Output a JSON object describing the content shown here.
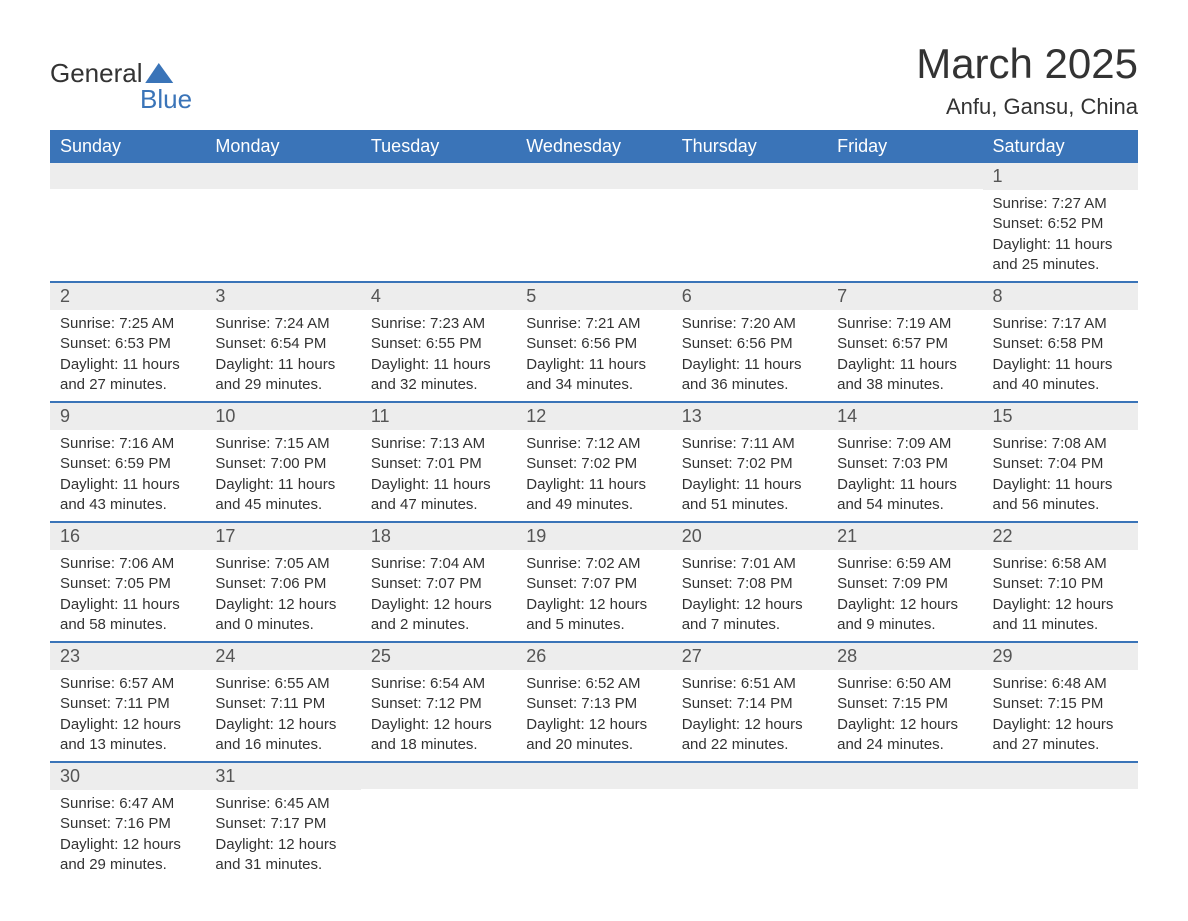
{
  "logo": {
    "text_top": "General",
    "text_bottom": "Blue"
  },
  "title": "March 2025",
  "location": "Anfu, Gansu, China",
  "colors": {
    "header_bg": "#3a74b8",
    "header_text": "#ffffff",
    "daynum_bg": "#ededed",
    "border": "#3a74b8",
    "text": "#333333",
    "body_bg": "#ffffff"
  },
  "daysOfWeek": [
    "Sunday",
    "Monday",
    "Tuesday",
    "Wednesday",
    "Thursday",
    "Friday",
    "Saturday"
  ],
  "weeks": [
    [
      {
        "day": "",
        "sunrise": "",
        "sunset": "",
        "daylight": ""
      },
      {
        "day": "",
        "sunrise": "",
        "sunset": "",
        "daylight": ""
      },
      {
        "day": "",
        "sunrise": "",
        "sunset": "",
        "daylight": ""
      },
      {
        "day": "",
        "sunrise": "",
        "sunset": "",
        "daylight": ""
      },
      {
        "day": "",
        "sunrise": "",
        "sunset": "",
        "daylight": ""
      },
      {
        "day": "",
        "sunrise": "",
        "sunset": "",
        "daylight": ""
      },
      {
        "day": "1",
        "sunrise": "Sunrise: 7:27 AM",
        "sunset": "Sunset: 6:52 PM",
        "daylight": "Daylight: 11 hours and 25 minutes."
      }
    ],
    [
      {
        "day": "2",
        "sunrise": "Sunrise: 7:25 AM",
        "sunset": "Sunset: 6:53 PM",
        "daylight": "Daylight: 11 hours and 27 minutes."
      },
      {
        "day": "3",
        "sunrise": "Sunrise: 7:24 AM",
        "sunset": "Sunset: 6:54 PM",
        "daylight": "Daylight: 11 hours and 29 minutes."
      },
      {
        "day": "4",
        "sunrise": "Sunrise: 7:23 AM",
        "sunset": "Sunset: 6:55 PM",
        "daylight": "Daylight: 11 hours and 32 minutes."
      },
      {
        "day": "5",
        "sunrise": "Sunrise: 7:21 AM",
        "sunset": "Sunset: 6:56 PM",
        "daylight": "Daylight: 11 hours and 34 minutes."
      },
      {
        "day": "6",
        "sunrise": "Sunrise: 7:20 AM",
        "sunset": "Sunset: 6:56 PM",
        "daylight": "Daylight: 11 hours and 36 minutes."
      },
      {
        "day": "7",
        "sunrise": "Sunrise: 7:19 AM",
        "sunset": "Sunset: 6:57 PM",
        "daylight": "Daylight: 11 hours and 38 minutes."
      },
      {
        "day": "8",
        "sunrise": "Sunrise: 7:17 AM",
        "sunset": "Sunset: 6:58 PM",
        "daylight": "Daylight: 11 hours and 40 minutes."
      }
    ],
    [
      {
        "day": "9",
        "sunrise": "Sunrise: 7:16 AM",
        "sunset": "Sunset: 6:59 PM",
        "daylight": "Daylight: 11 hours and 43 minutes."
      },
      {
        "day": "10",
        "sunrise": "Sunrise: 7:15 AM",
        "sunset": "Sunset: 7:00 PM",
        "daylight": "Daylight: 11 hours and 45 minutes."
      },
      {
        "day": "11",
        "sunrise": "Sunrise: 7:13 AM",
        "sunset": "Sunset: 7:01 PM",
        "daylight": "Daylight: 11 hours and 47 minutes."
      },
      {
        "day": "12",
        "sunrise": "Sunrise: 7:12 AM",
        "sunset": "Sunset: 7:02 PM",
        "daylight": "Daylight: 11 hours and 49 minutes."
      },
      {
        "day": "13",
        "sunrise": "Sunrise: 7:11 AM",
        "sunset": "Sunset: 7:02 PM",
        "daylight": "Daylight: 11 hours and 51 minutes."
      },
      {
        "day": "14",
        "sunrise": "Sunrise: 7:09 AM",
        "sunset": "Sunset: 7:03 PM",
        "daylight": "Daylight: 11 hours and 54 minutes."
      },
      {
        "day": "15",
        "sunrise": "Sunrise: 7:08 AM",
        "sunset": "Sunset: 7:04 PM",
        "daylight": "Daylight: 11 hours and 56 minutes."
      }
    ],
    [
      {
        "day": "16",
        "sunrise": "Sunrise: 7:06 AM",
        "sunset": "Sunset: 7:05 PM",
        "daylight": "Daylight: 11 hours and 58 minutes."
      },
      {
        "day": "17",
        "sunrise": "Sunrise: 7:05 AM",
        "sunset": "Sunset: 7:06 PM",
        "daylight": "Daylight: 12 hours and 0 minutes."
      },
      {
        "day": "18",
        "sunrise": "Sunrise: 7:04 AM",
        "sunset": "Sunset: 7:07 PM",
        "daylight": "Daylight: 12 hours and 2 minutes."
      },
      {
        "day": "19",
        "sunrise": "Sunrise: 7:02 AM",
        "sunset": "Sunset: 7:07 PM",
        "daylight": "Daylight: 12 hours and 5 minutes."
      },
      {
        "day": "20",
        "sunrise": "Sunrise: 7:01 AM",
        "sunset": "Sunset: 7:08 PM",
        "daylight": "Daylight: 12 hours and 7 minutes."
      },
      {
        "day": "21",
        "sunrise": "Sunrise: 6:59 AM",
        "sunset": "Sunset: 7:09 PM",
        "daylight": "Daylight: 12 hours and 9 minutes."
      },
      {
        "day": "22",
        "sunrise": "Sunrise: 6:58 AM",
        "sunset": "Sunset: 7:10 PM",
        "daylight": "Daylight: 12 hours and 11 minutes."
      }
    ],
    [
      {
        "day": "23",
        "sunrise": "Sunrise: 6:57 AM",
        "sunset": "Sunset: 7:11 PM",
        "daylight": "Daylight: 12 hours and 13 minutes."
      },
      {
        "day": "24",
        "sunrise": "Sunrise: 6:55 AM",
        "sunset": "Sunset: 7:11 PM",
        "daylight": "Daylight: 12 hours and 16 minutes."
      },
      {
        "day": "25",
        "sunrise": "Sunrise: 6:54 AM",
        "sunset": "Sunset: 7:12 PM",
        "daylight": "Daylight: 12 hours and 18 minutes."
      },
      {
        "day": "26",
        "sunrise": "Sunrise: 6:52 AM",
        "sunset": "Sunset: 7:13 PM",
        "daylight": "Daylight: 12 hours and 20 minutes."
      },
      {
        "day": "27",
        "sunrise": "Sunrise: 6:51 AM",
        "sunset": "Sunset: 7:14 PM",
        "daylight": "Daylight: 12 hours and 22 minutes."
      },
      {
        "day": "28",
        "sunrise": "Sunrise: 6:50 AM",
        "sunset": "Sunset: 7:15 PM",
        "daylight": "Daylight: 12 hours and 24 minutes."
      },
      {
        "day": "29",
        "sunrise": "Sunrise: 6:48 AM",
        "sunset": "Sunset: 7:15 PM",
        "daylight": "Daylight: 12 hours and 27 minutes."
      }
    ],
    [
      {
        "day": "30",
        "sunrise": "Sunrise: 6:47 AM",
        "sunset": "Sunset: 7:16 PM",
        "daylight": "Daylight: 12 hours and 29 minutes."
      },
      {
        "day": "31",
        "sunrise": "Sunrise: 6:45 AM",
        "sunset": "Sunset: 7:17 PM",
        "daylight": "Daylight: 12 hours and 31 minutes."
      },
      {
        "day": "",
        "sunrise": "",
        "sunset": "",
        "daylight": ""
      },
      {
        "day": "",
        "sunrise": "",
        "sunset": "",
        "daylight": ""
      },
      {
        "day": "",
        "sunrise": "",
        "sunset": "",
        "daylight": ""
      },
      {
        "day": "",
        "sunrise": "",
        "sunset": "",
        "daylight": ""
      },
      {
        "day": "",
        "sunrise": "",
        "sunset": "",
        "daylight": ""
      }
    ]
  ]
}
